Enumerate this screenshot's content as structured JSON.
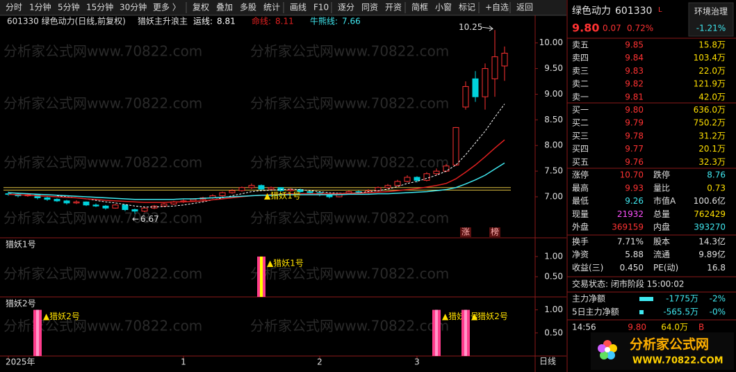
{
  "toolbar": [
    "分时",
    "1分钟",
    "5分钟",
    "15分钟",
    "30分钟",
    "更多 〉",
    "复权",
    "叠加",
    "多股",
    "统计",
    "画线",
    "F10",
    "逐分",
    "同资",
    "开资",
    "简框",
    "小窗",
    "标记",
    "+自选",
    "返回"
  ],
  "chart_data": {
    "type": "candlestick",
    "title": "601330 绿色动力(日线,前复权)",
    "indicator": "猎妖主升浪主",
    "up_color": "#ff3232",
    "down_color": "#00d2dc",
    "ylim": [
      6.39,
      10.43
    ],
    "yticks": [
      {
        "value": 7,
        "label": "7.00"
      },
      {
        "value": 7.5,
        "label": "7.50"
      },
      {
        "value": 8,
        "label": "8.00"
      },
      {
        "value": 8.5,
        "label": "8.50"
      },
      {
        "value": 9,
        "label": "9.00"
      },
      {
        "value": 9.5,
        "label": "9.50"
      },
      {
        "value": 10,
        "label": "10.00"
      }
    ],
    "levels": [
      7.18,
      7.13
    ],
    "candles": [
      [
        7.06,
        7.1,
        7.02,
        7.05
      ],
      [
        7.05,
        7.08,
        6.99,
        7.02
      ],
      [
        7.02,
        7.07,
        7.0,
        7.04
      ],
      [
        7.04,
        7.05,
        6.95,
        6.98
      ],
      [
        6.98,
        7.0,
        6.92,
        6.95
      ],
      [
        6.95,
        6.97,
        6.9,
        6.92
      ],
      [
        6.92,
        6.94,
        6.85,
        6.88
      ],
      [
        6.88,
        6.93,
        6.86,
        6.9
      ],
      [
        6.9,
        6.91,
        6.82,
        6.84
      ],
      [
        6.84,
        6.87,
        6.8,
        6.82
      ],
      [
        6.82,
        6.84,
        6.75,
        6.78
      ],
      [
        6.78,
        6.86,
        6.77,
        6.84
      ],
      [
        6.84,
        6.85,
        6.72,
        6.75
      ],
      [
        6.75,
        6.77,
        6.67,
        6.72
      ],
      [
        6.72,
        6.8,
        6.7,
        6.78
      ],
      [
        6.78,
        6.84,
        6.76,
        6.82
      ],
      [
        6.82,
        6.88,
        6.8,
        6.86
      ],
      [
        6.86,
        6.92,
        6.84,
        6.9
      ],
      [
        6.9,
        6.95,
        6.88,
        6.92
      ],
      [
        6.92,
        6.97,
        6.9,
        6.95
      ],
      [
        6.95,
        7.0,
        6.93,
        6.98
      ],
      [
        6.98,
        7.05,
        6.96,
        7.02
      ],
      [
        7.02,
        7.1,
        7.0,
        7.08
      ],
      [
        7.08,
        7.15,
        7.06,
        7.12
      ],
      [
        7.12,
        7.2,
        7.1,
        7.18
      ],
      [
        7.18,
        7.26,
        7.15,
        7.22
      ],
      [
        7.22,
        7.24,
        7.12,
        7.15
      ],
      [
        7.15,
        7.2,
        7.13,
        7.18
      ],
      [
        7.18,
        7.19,
        7.1,
        7.12
      ],
      [
        7.12,
        7.17,
        7.1,
        7.14
      ],
      [
        7.14,
        7.16,
        7.08,
        7.1
      ],
      [
        7.1,
        7.12,
        7.05,
        7.08
      ],
      [
        7.08,
        7.1,
        7.01,
        7.04
      ],
      [
        7.04,
        7.06,
        6.97,
        7.0
      ],
      [
        7.0,
        7.08,
        6.99,
        7.06
      ],
      [
        7.06,
        7.12,
        7.04,
        7.1
      ],
      [
        7.1,
        7.12,
        7.05,
        7.08
      ],
      [
        7.08,
        7.15,
        7.06,
        7.12
      ],
      [
        7.12,
        7.2,
        7.1,
        7.18
      ],
      [
        7.18,
        7.25,
        7.16,
        7.22
      ],
      [
        7.22,
        7.33,
        7.2,
        7.3
      ],
      [
        7.3,
        7.42,
        7.28,
        7.38
      ],
      [
        7.38,
        7.4,
        7.28,
        7.32
      ],
      [
        7.32,
        7.48,
        7.3,
        7.45
      ],
      [
        7.45,
        7.55,
        7.42,
        7.5
      ],
      [
        7.5,
        7.64,
        7.48,
        7.6
      ],
      [
        7.62,
        8.36,
        7.6,
        8.35
      ],
      [
        8.75,
        9.25,
        8.7,
        9.15
      ],
      [
        9.3,
        9.45,
        8.85,
        8.95
      ],
      [
        8.95,
        9.6,
        8.7,
        9.5
      ],
      [
        9.3,
        10.25,
        8.95,
        9.73
      ],
      [
        9.55,
        9.93,
        9.26,
        9.8
      ]
    ],
    "lines": [
      {
        "name": "运线:",
        "value": 8.81,
        "color": "#ffffff",
        "dashed": true,
        "values": [
          null,
          null,
          null,
          null,
          null,
          7.02,
          7.0,
          6.98,
          6.96,
          6.93,
          6.9,
          6.88,
          6.85,
          6.82,
          6.8,
          6.8,
          6.81,
          6.82,
          6.84,
          6.87,
          6.9,
          6.94,
          6.98,
          7.02,
          7.06,
          7.1,
          7.12,
          7.13,
          7.14,
          7.15,
          7.14,
          7.12,
          7.1,
          7.08,
          7.07,
          7.07,
          7.08,
          7.1,
          7.12,
          7.15,
          7.2,
          7.26,
          7.3,
          7.36,
          7.42,
          7.5,
          7.62,
          7.82,
          8.05,
          8.28,
          8.55,
          8.81
        ]
      },
      {
        "name": "命线:",
        "value": 8.11,
        "color": "#e02020",
        "dashed": false,
        "values": [
          7.05,
          7.04,
          7.03,
          7.02,
          7.01,
          7.0,
          6.99,
          6.98,
          6.96,
          6.95,
          6.93,
          6.92,
          6.91,
          6.9,
          6.89,
          6.89,
          6.89,
          6.9,
          6.9,
          6.91,
          6.92,
          6.94,
          6.96,
          6.98,
          7.0,
          7.02,
          7.03,
          7.04,
          7.05,
          7.06,
          7.06,
          7.06,
          7.06,
          7.06,
          7.06,
          7.07,
          7.07,
          7.08,
          7.09,
          7.1,
          7.12,
          7.14,
          7.16,
          7.19,
          7.22,
          7.26,
          7.35,
          7.48,
          7.62,
          7.78,
          7.95,
          8.11
        ]
      },
      {
        "name": "牛熊线:",
        "value": 7.66,
        "color": "#40e8f0",
        "dashed": false,
        "values": [
          7.08,
          7.07,
          7.06,
          7.05,
          7.04,
          7.03,
          7.02,
          7.01,
          7.0,
          6.99,
          6.98,
          6.97,
          6.96,
          6.95,
          6.95,
          6.95,
          6.95,
          6.95,
          6.96,
          6.96,
          6.97,
          6.98,
          6.99,
          7.0,
          7.01,
          7.02,
          7.03,
          7.03,
          7.04,
          7.04,
          7.04,
          7.04,
          7.04,
          7.04,
          7.04,
          7.05,
          7.05,
          7.05,
          7.06,
          7.06,
          7.07,
          7.08,
          7.09,
          7.1,
          7.12,
          7.14,
          7.18,
          7.25,
          7.33,
          7.42,
          7.54,
          7.66
        ]
      }
    ],
    "peak": {
      "index": 50,
      "value": 10.25
    },
    "trough": {
      "index": 13,
      "value": 6.67
    },
    "signal": {
      "index": 26,
      "label": "▲猎妖1号"
    },
    "markers": [
      {
        "index": 47,
        "label": "涨"
      },
      {
        "index": 50,
        "label": "榜"
      }
    ],
    "x_labels": [
      {
        "index": 0,
        "label": "2025年"
      },
      {
        "index": 18,
        "label": "1"
      },
      {
        "index": 32,
        "label": "2"
      },
      {
        "index": 42,
        "label": "3"
      }
    ],
    "period": "日线",
    "panels": [
      {
        "title": "猎妖1号",
        "ylim": [
          0,
          1.43
        ],
        "yticks": [
          {
            "value": 1,
            "label": "1.00"
          },
          {
            "value": 0.5,
            "label": "0.50"
          }
        ],
        "bar_color": "#ff3c8c",
        "stripe_color": "#ffff00",
        "signals": [
          {
            "index": 26,
            "value": 1,
            "label": "▲猎妖1号"
          }
        ]
      },
      {
        "title": "猎妖2号",
        "ylim": [
          0,
          1.25
        ],
        "yticks": [
          {
            "value": 1,
            "label": "1.00"
          },
          {
            "value": 0.5,
            "label": "0.50"
          }
        ],
        "bar_color": "#ff3c8c",
        "stripe_color": "#ff96c8",
        "signals": [
          {
            "index": 3,
            "value": 1,
            "label": "▲猎妖2号"
          },
          {
            "index": 44,
            "value": 1,
            "label": "▲猎妖2号"
          },
          {
            "index": 47,
            "value": 1,
            "label": "▲猎妖2号"
          }
        ]
      }
    ]
  },
  "quote": {
    "name": "绿色动力",
    "code": "601330",
    "flag": "L",
    "sector": "环境治理",
    "sector_change": "-1.21%",
    "price": "9.80",
    "change": "0.07",
    "change_pct": "0.72%"
  },
  "order_book": [
    [
      "卖五",
      "9.85",
      "15.8万"
    ],
    [
      "卖四",
      "9.84",
      "103.4万"
    ],
    [
      "卖三",
      "9.83",
      "22.0万"
    ],
    [
      "卖二",
      "9.82",
      "121.9万"
    ],
    [
      "卖一",
      "9.81",
      "42.0万"
    ],
    [
      "买一",
      "9.80",
      "636.0万"
    ],
    [
      "买二",
      "9.79",
      "750.2万"
    ],
    [
      "买三",
      "9.78",
      "31.2万"
    ],
    [
      "买四",
      "9.77",
      "20.1万"
    ],
    [
      "买五",
      "9.76",
      "32.3万"
    ]
  ],
  "stats": [
    [
      "涨停",
      "10.70",
      "跌停",
      "8.76"
    ],
    [
      "最高",
      "9.93",
      "量比",
      "0.73"
    ],
    [
      "最低",
      "9.26",
      "市值A",
      "100.6亿"
    ],
    [
      "现量",
      "21932",
      "总量",
      "762429"
    ],
    [
      "外盘",
      "369159",
      "内盘",
      "393270"
    ],
    [
      "换手",
      "7.71%",
      "股本",
      "14.3亿"
    ],
    [
      "净资",
      "5.88",
      "流通",
      "9.89亿"
    ],
    [
      "收益(三)",
      "0.450",
      "PE(动)",
      "16.8"
    ]
  ],
  "status": "交易状态: 闭市阶段 15:00:02",
  "fund_flow": [
    [
      "主力净额",
      "-1775万",
      "-2%"
    ],
    [
      "5日主力净额",
      "-565.5万",
      "-0%"
    ]
  ],
  "ticks": [
    [
      "14:56",
      "9.80",
      "64.0万",
      "B"
    ]
  ],
  "watermark": "分析家公式网www.70822.com",
  "logo": {
    "title": "分析家公式网",
    "url": "WWW.70822.COM"
  }
}
